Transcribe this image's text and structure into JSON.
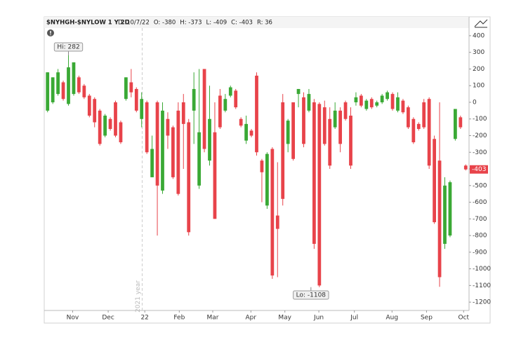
{
  "chart_data": {
    "type": "candlestick",
    "symbol": "$NYHGH-$NYLOW 1 Y 2D",
    "header_fields": [
      "D: 10/7/22",
      "O: -380",
      "H: -373",
      "L: -409",
      "C: -403",
      "R: 36"
    ],
    "watermark": "2021 year",
    "hi_label": "Hi: 282",
    "lo_label": "Lo: -1108",
    "last_value": -403,
    "up_color": "#3aa935",
    "down_color": "#e8434a",
    "ohlc": [
      [
        -50,
        180,
        -60,
        180
      ],
      [
        0,
        150,
        -10,
        150
      ],
      [
        50,
        200,
        40,
        180
      ],
      [
        120,
        130,
        10,
        20
      ],
      [
        -10,
        282,
        -20,
        210
      ],
      [
        50,
        240,
        40,
        240
      ],
      [
        150,
        160,
        50,
        60
      ],
      [
        100,
        110,
        20,
        30
      ],
      [
        40,
        50,
        -90,
        -80
      ],
      [
        20,
        30,
        -150,
        -120
      ],
      [
        -50,
        -40,
        -260,
        -250
      ],
      [
        -200,
        -70,
        -210,
        -80
      ],
      [
        -100,
        -90,
        -170,
        -160
      ],
      [
        0,
        10,
        -210,
        -200
      ],
      [
        -120,
        -110,
        -250,
        -240
      ],
      [
        20,
        150,
        10,
        150
      ],
      [
        120,
        200,
        30,
        60
      ],
      [
        80,
        90,
        -60,
        -50
      ],
      [
        -100,
        60,
        -150,
        20
      ],
      [
        0,
        10,
        -310,
        -300
      ],
      [
        -450,
        -200,
        -450,
        -280
      ],
      [
        0,
        10,
        -800,
        -500
      ],
      [
        -530,
        0,
        -550,
        -50
      ],
      [
        -100,
        -60,
        -280,
        -200
      ],
      [
        -150,
        -140,
        -460,
        -450
      ],
      [
        -50,
        0,
        -560,
        -550
      ],
      [
        0,
        50,
        -400,
        -130
      ],
      [
        -120,
        -100,
        -800,
        -780
      ],
      [
        -50,
        180,
        -250,
        80
      ],
      [
        -500,
        200,
        -520,
        -180
      ],
      [
        200,
        200,
        -300,
        -280
      ],
      [
        -350,
        100,
        -380,
        -100
      ],
      [
        -180,
        0,
        -700,
        -700
      ],
      [
        40,
        80,
        -160,
        -150
      ],
      [
        -50,
        50,
        -60,
        20
      ],
      [
        40,
        100,
        30,
        90
      ],
      [
        70,
        80,
        -40,
        -30
      ],
      [
        -100,
        -90,
        -150,
        -140
      ],
      [
        -230,
        -80,
        -250,
        -130
      ],
      [
        -170,
        -160,
        -210,
        -200
      ],
      [
        160,
        180,
        -320,
        -300
      ],
      [
        -350,
        -340,
        -600,
        -420
      ],
      [
        -620,
        -300,
        -640,
        -310
      ],
      [
        -280,
        -270,
        -1060,
        -1040
      ],
      [
        -680,
        -360,
        -1050,
        -760
      ],
      [
        0,
        50,
        -620,
        -580
      ],
      [
        -250,
        -100,
        -300,
        -110
      ],
      [
        0,
        0,
        -350,
        -340
      ],
      [
        50,
        80,
        -30,
        80
      ],
      [
        30,
        60,
        -270,
        -250
      ],
      [
        -50,
        80,
        -60,
        50
      ],
      [
        0,
        20,
        -880,
        -850
      ],
      [
        -10,
        0,
        -1110,
        -1100
      ],
      [
        -30,
        10,
        -260,
        -250
      ],
      [
        -100,
        -30,
        -400,
        -380
      ],
      [
        -150,
        0,
        -160,
        -50
      ],
      [
        -50,
        -30,
        -300,
        -250
      ],
      [
        0,
        10,
        -110,
        -100
      ],
      [
        -80,
        -30,
        -400,
        -380
      ],
      [
        0,
        60,
        -20,
        30
      ],
      [
        40,
        50,
        -30,
        -20
      ],
      [
        -40,
        20,
        -50,
        10
      ],
      [
        20,
        30,
        -40,
        -30
      ],
      [
        -20,
        10,
        -30,
        0
      ],
      [
        0,
        50,
        -10,
        40
      ],
      [
        20,
        70,
        10,
        60
      ],
      [
        50,
        60,
        -50,
        -40
      ],
      [
        -50,
        60,
        -60,
        30
      ],
      [
        10,
        20,
        -70,
        -60
      ],
      [
        -30,
        -20,
        -160,
        -150
      ],
      [
        -100,
        -90,
        -250,
        -240
      ],
      [
        -130,
        -120,
        -170,
        -160
      ],
      [
        0,
        20,
        -160,
        -150
      ],
      [
        20,
        30,
        -400,
        -380
      ],
      [
        -220,
        -200,
        -730,
        -720
      ],
      [
        -350,
        0,
        -1108,
        -1050
      ],
      [
        -850,
        -450,
        -880,
        -500
      ],
      [
        -800,
        -470,
        -810,
        -480
      ],
      [
        -220,
        -40,
        -230,
        -40
      ],
      [
        -90,
        -80,
        -160,
        -150
      ],
      [
        -380,
        -373,
        -409,
        -403
      ]
    ],
    "xlim": [
      -0.5,
      80.5
    ],
    "xticks": [
      {
        "value": 4.8,
        "label": "Nov"
      },
      {
        "value": 11.6,
        "label": "Dec"
      },
      {
        "value": 18.6,
        "label": "22"
      },
      {
        "value": 25.2,
        "label": "Feb"
      },
      {
        "value": 31.6,
        "label": "Mar"
      },
      {
        "value": 38.9,
        "label": "Apr"
      },
      {
        "value": 45.4,
        "label": "May"
      },
      {
        "value": 51.9,
        "label": "Jun"
      },
      {
        "value": 58.7,
        "label": "Jul"
      },
      {
        "value": 65.9,
        "label": "Aug"
      },
      {
        "value": 72.5,
        "label": "Sep"
      },
      {
        "value": 79.6,
        "label": "Oct"
      }
    ],
    "year_marker": 18.1,
    "ylim": [
      -1250,
      446
    ],
    "yticks": [
      400,
      300,
      200,
      100,
      0,
      -100,
      -200,
      -300,
      -400,
      -500,
      -600,
      -700,
      -800,
      -900,
      -1000,
      -1100,
      -1200
    ]
  }
}
